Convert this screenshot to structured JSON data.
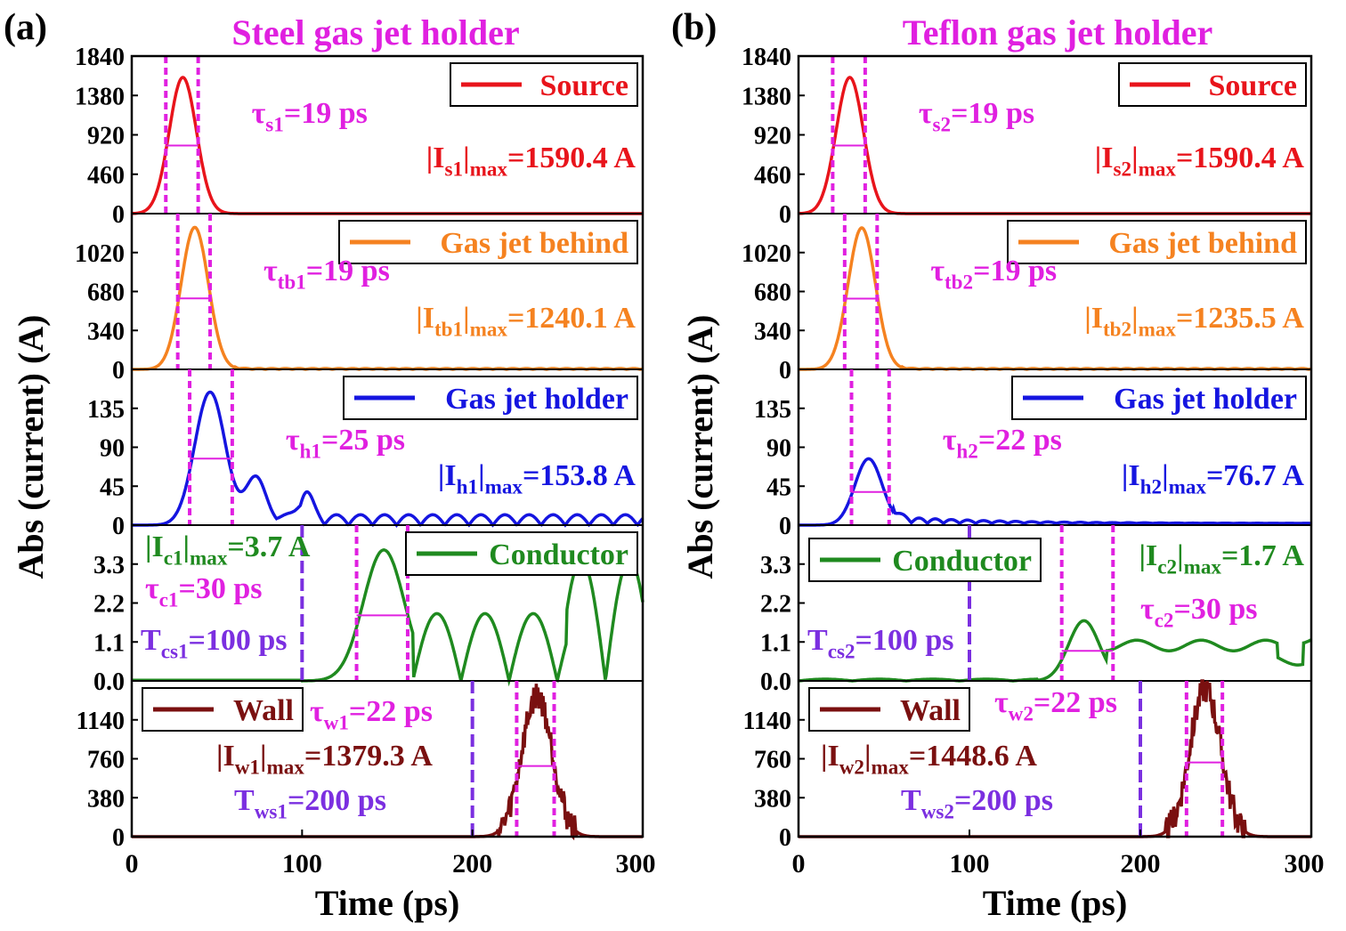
{
  "figure": {
    "xlabel": "Time (ps)",
    "ylabel": "Abs (current) (A)",
    "x_ticks": [
      "0",
      "100",
      "200",
      "300"
    ],
    "xlim": [
      0,
      300
    ]
  },
  "panels": [
    {
      "label": "(a)",
      "title": "Steel gas jet holder",
      "x_ticks": [
        "0",
        "100",
        "200",
        "300"
      ]
    },
    {
      "label": "(b)",
      "title": "Teflon gas jet holder",
      "x_ticks": [
        "0",
        "100",
        "200",
        "300"
      ]
    }
  ],
  "colors": {
    "source": "#e8141b",
    "behind": "#f58220",
    "holder": "#1515e0",
    "conductor": "#1f8a1f",
    "wall": "#7a1010",
    "marker": "#e020e0",
    "delay": "#7b2fe0",
    "title": "#e020e0"
  },
  "chart_data": [
    {
      "panel": "a",
      "type": "line",
      "subplots": [
        {
          "key": "source",
          "legend": "Source",
          "yticks": [
            "1840",
            "1380",
            "920",
            "460",
            "0"
          ],
          "ylim": [
            0,
            1840
          ],
          "peak": {
            "t": 30,
            "v": 1590.4,
            "sigma": 8
          },
          "tau": {
            "label_main": "τ",
            "label_sub": "s1",
            "label_rest": "=19 ps",
            "t1": 20,
            "t2": 39
          },
          "max": {
            "pre": "|I",
            "sub": "s1",
            "mid": "|",
            "sub2": "max",
            "rest": "=1590.4 A"
          }
        },
        {
          "key": "behind",
          "legend": "Gas jet behind",
          "yticks": [
            "1020",
            "680",
            "340",
            "0"
          ],
          "ylim": [
            0,
            1360
          ],
          "peak": {
            "t": 37,
            "v": 1240.1,
            "sigma": 8
          },
          "tau": {
            "label_main": "τ",
            "label_sub": "tb1",
            "label_rest": "=19 ps",
            "t1": 27,
            "t2": 46
          },
          "max": {
            "pre": "|I",
            "sub": "tb1",
            "mid": "|",
            "sub2": "max",
            "rest": "=1240.1 A"
          }
        },
        {
          "key": "holder",
          "legend": "Gas jet holder",
          "yticks": [
            "135",
            "90",
            "45",
            "0"
          ],
          "ylim": [
            0,
            180
          ],
          "peak": {
            "t": 46,
            "v": 153.8,
            "sigma": 9
          },
          "tau": {
            "label_main": "τ",
            "label_sub": "h1",
            "label_rest": "=25 ps",
            "t1": 34,
            "t2": 59
          },
          "max": {
            "pre": "|I",
            "sub": "h1",
            "mid": "|",
            "sub2": "max",
            "rest": "=153.8 A"
          }
        },
        {
          "key": "conductor",
          "legend": "Conductor",
          "yticks": [
            "3.3",
            "2.2",
            "1.1",
            "0.0"
          ],
          "ylim": [
            0,
            4.4
          ],
          "peak": {
            "t": 148,
            "v": 3.7,
            "sigma": 12
          },
          "tau": {
            "label_main": "τ",
            "label_sub": "c1",
            "label_rest": "=30 ps",
            "t1": 132,
            "t2": 162
          },
          "max": {
            "pre": "|I",
            "sub": "c1",
            "mid": "|",
            "sub2": "max",
            "rest": "=3.7 A"
          },
          "delay": {
            "label_main": "T",
            "label_sub": "cs1",
            "label_rest": "=100 ps",
            "t": 100
          }
        },
        {
          "key": "wall",
          "legend": "Wall",
          "yticks": [
            "1140",
            "760",
            "380",
            "0"
          ],
          "ylim": [
            0,
            1520
          ],
          "peak": {
            "t": 238,
            "v": 1379.3,
            "sigma": 9
          },
          "tau": {
            "label_main": "τ",
            "label_sub": "w1",
            "label_rest": "=22 ps",
            "t1": 226,
            "t2": 248
          },
          "max": {
            "pre": "|I",
            "sub": "w1",
            "mid": "|",
            "sub2": "max",
            "rest": "=1379.3 A"
          },
          "delay": {
            "label_main": "T",
            "label_sub": "ws1",
            "label_rest": "=200 ps",
            "t": 200
          }
        }
      ]
    },
    {
      "panel": "b",
      "type": "line",
      "subplots": [
        {
          "key": "source",
          "legend": "Source",
          "yticks": [
            "1840",
            "1380",
            "920",
            "460",
            "0"
          ],
          "ylim": [
            0,
            1840
          ],
          "peak": {
            "t": 30,
            "v": 1590.4,
            "sigma": 8
          },
          "tau": {
            "label_main": "τ",
            "label_sub": "s2",
            "label_rest": "=19 ps",
            "t1": 20,
            "t2": 39
          },
          "max": {
            "pre": "|I",
            "sub": "s2",
            "mid": "|",
            "sub2": "max",
            "rest": "=1590.4 A"
          }
        },
        {
          "key": "behind",
          "legend": "Gas jet behind",
          "yticks": [
            "1020",
            "680",
            "340",
            "0"
          ],
          "ylim": [
            0,
            1360
          ],
          "peak": {
            "t": 37,
            "v": 1235.5,
            "sigma": 8
          },
          "tau": {
            "label_main": "τ",
            "label_sub": "tb2",
            "label_rest": "=19 ps",
            "t1": 27,
            "t2": 46
          },
          "max": {
            "pre": "|I",
            "sub": "tb2",
            "mid": "|",
            "sub2": "max",
            "rest": "=1235.5 A"
          }
        },
        {
          "key": "holder",
          "legend": "Gas jet holder",
          "yticks": [
            "135",
            "90",
            "45",
            "0"
          ],
          "ylim": [
            0,
            180
          ],
          "peak": {
            "t": 41,
            "v": 76.7,
            "sigma": 8
          },
          "tau": {
            "label_main": "τ",
            "label_sub": "h2",
            "label_rest": "=22 ps",
            "t1": 31,
            "t2": 53
          },
          "max": {
            "pre": "|I",
            "sub": "h2",
            "mid": "|",
            "sub2": "max",
            "rest": "=76.7 A"
          }
        },
        {
          "key": "conductor",
          "legend": "Conductor",
          "yticks": [
            "3.3",
            "2.2",
            "1.1",
            "0.0"
          ],
          "ylim": [
            0,
            4.4
          ],
          "peak": {
            "t": 167,
            "v": 1.7,
            "sigma": 9
          },
          "tau": {
            "label_main": "τ",
            "label_sub": "c2",
            "label_rest": "=30 ps",
            "t1": 154,
            "t2": 184
          },
          "max": {
            "pre": "|I",
            "sub": "c2",
            "mid": "|",
            "sub2": "max",
            "rest": "=1.7 A"
          },
          "delay": {
            "label_main": "T",
            "label_sub": "cs2",
            "label_rest": "=100 ps",
            "t": 100
          }
        },
        {
          "key": "wall",
          "legend": "Wall",
          "yticks": [
            "1140",
            "760",
            "380",
            "0"
          ],
          "ylim": [
            0,
            1520
          ],
          "peak": {
            "t": 238,
            "v": 1448.6,
            "sigma": 9
          },
          "tau": {
            "label_main": "τ",
            "label_sub": "w2",
            "label_rest": "=22 ps",
            "t1": 227,
            "t2": 248
          },
          "max": {
            "pre": "|I",
            "sub": "w2",
            "mid": "|",
            "sub2": "max",
            "rest": "=1448.6 A"
          },
          "delay": {
            "label_main": "T",
            "label_sub": "ws2",
            "label_rest": "=200 ps",
            "t": 200
          }
        }
      ]
    }
  ]
}
